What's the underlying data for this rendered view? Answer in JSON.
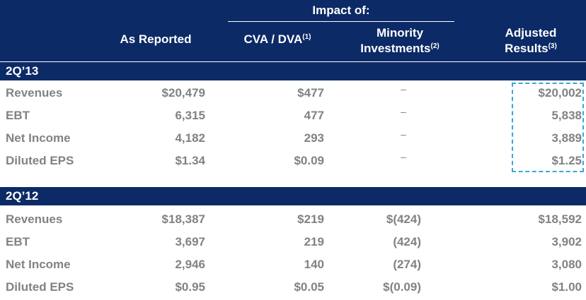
{
  "header": {
    "impact_of": "Impact of:",
    "columns": [
      {
        "line1": "As Reported",
        "line2": "",
        "sup": ""
      },
      {
        "line1": "CVA / DVA",
        "line2": "",
        "sup": "(1)"
      },
      {
        "line1": "Minority",
        "line2": "Investments",
        "sup": "(2)"
      },
      {
        "line1": "Adjusted",
        "line2": "Results",
        "sup": "(3)"
      }
    ]
  },
  "sections": [
    {
      "title": "2Q’13",
      "rows": [
        {
          "label": "Revenues",
          "reported": "$20,479",
          "cva": "$477",
          "minority": "–",
          "adjusted": "$20,002"
        },
        {
          "label": "EBT",
          "reported": "6,315",
          "cva": "477",
          "minority": "–",
          "adjusted": "5,838"
        },
        {
          "label": "Net Income",
          "reported": "4,182",
          "cva": "293",
          "minority": "–",
          "adjusted": "3,889"
        },
        {
          "label": "Diluted EPS",
          "reported": "$1.34",
          "cva": "$0.09",
          "minority": "–",
          "adjusted": "$1.25"
        }
      ]
    },
    {
      "title": "2Q’12",
      "rows": [
        {
          "label": "Revenues",
          "reported": "$18,387",
          "cva": "$219",
          "minority": "$(424)",
          "adjusted": "$18,592"
        },
        {
          "label": "EBT",
          "reported": "3,697",
          "cva": "219",
          "minority": "(424)",
          "adjusted": "3,902"
        },
        {
          "label": "Net Income",
          "reported": "2,946",
          "cva": "140",
          "minority": "(274)",
          "adjusted": "3,080"
        },
        {
          "label": "Diluted EPS",
          "reported": "$0.95",
          "cva": "$0.05",
          "minority": "$(0.09)",
          "adjusted": "$1.00"
        }
      ]
    }
  ],
  "colors": {
    "header_bg": "#0c2a66",
    "text_gray": "#808285",
    "highlight_border": "#3aa6d8"
  }
}
